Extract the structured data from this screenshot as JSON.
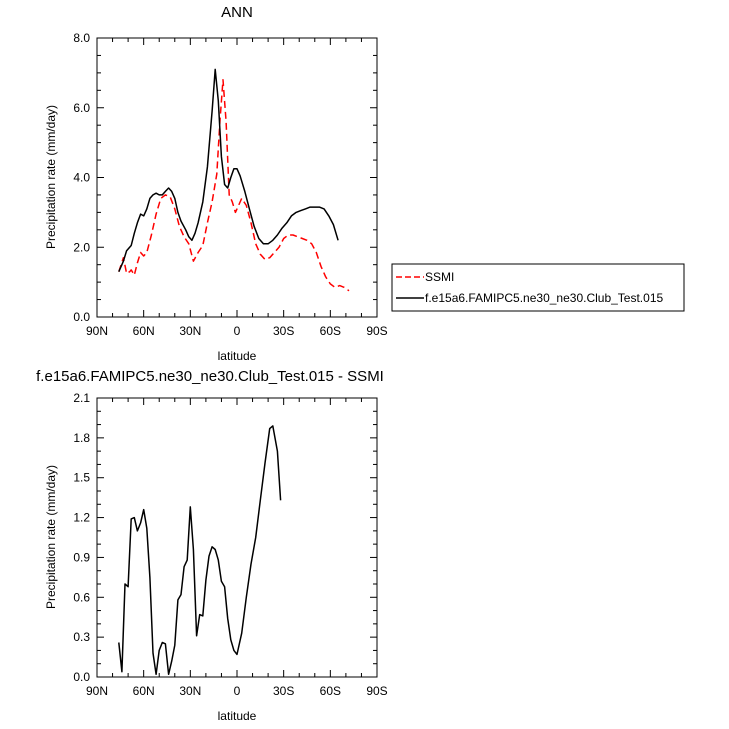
{
  "chart_data": [
    {
      "type": "line",
      "title": "ANN",
      "xlabel": "latitude",
      "ylabel": "Precipitation rate (mm/day)",
      "xlim": [
        90,
        -90
      ],
      "ylim": [
        0,
        8
      ],
      "x_tick_labels": [
        "90N",
        "60N",
        "30N",
        "0",
        "30S",
        "60S",
        "90S"
      ],
      "y_tick_labels": [
        "0.0",
        "2.0",
        "4.0",
        "6.0",
        "8.0"
      ],
      "grid": false,
      "legend_position": "right",
      "series": [
        {
          "name": "SSMI",
          "color": "#ff0000",
          "dash": "dashed",
          "points": [
            [
              76,
              1.3
            ],
            [
              73,
              1.7
            ],
            [
              71,
              1.25
            ],
            [
              69,
              1.3
            ],
            [
              68,
              1.35
            ],
            [
              66,
              1.2
            ],
            [
              64,
              1.55
            ],
            [
              62,
              1.85
            ],
            [
              60,
              1.75
            ],
            [
              58,
              1.85
            ],
            [
              55,
              2.35
            ],
            [
              52,
              2.95
            ],
            [
              49,
              3.4
            ],
            [
              46,
              3.5
            ],
            [
              43,
              3.45
            ],
            [
              40,
              3.1
            ],
            [
              37,
              2.6
            ],
            [
              34,
              2.3
            ],
            [
              31,
              2.1
            ],
            [
              28,
              1.6
            ],
            [
              25,
              1.85
            ],
            [
              22,
              2.05
            ],
            [
              19,
              2.7
            ],
            [
              16,
              3.3
            ],
            [
              13,
              4.1
            ],
            [
              11,
              5.6
            ],
            [
              9,
              6.8
            ],
            [
              7,
              5.6
            ],
            [
              5,
              3.5
            ],
            [
              3,
              3.3
            ],
            [
              1,
              3.0
            ],
            [
              -1,
              3.2
            ],
            [
              -3,
              3.4
            ],
            [
              -6,
              3.2
            ],
            [
              -9,
              2.7
            ],
            [
              -12,
              2.1
            ],
            [
              -15,
              1.8
            ],
            [
              -18,
              1.65
            ],
            [
              -21,
              1.7
            ],
            [
              -24,
              1.85
            ],
            [
              -27,
              2.0
            ],
            [
              -30,
              2.25
            ],
            [
              -33,
              2.35
            ],
            [
              -36,
              2.35
            ],
            [
              -39,
              2.3
            ],
            [
              -42,
              2.25
            ],
            [
              -45,
              2.2
            ],
            [
              -48,
              2.1
            ],
            [
              -51,
              1.85
            ],
            [
              -54,
              1.45
            ],
            [
              -57,
              1.15
            ],
            [
              -60,
              0.95
            ],
            [
              -63,
              0.85
            ],
            [
              -66,
              0.9
            ],
            [
              -69,
              0.85
            ],
            [
              -72,
              0.75
            ]
          ]
        },
        {
          "name": "f.e15a6.FAMIPC5.ne30_ne30.Club_Test.015",
          "color": "#000000",
          "dash": "solid",
          "points": [
            [
              76,
              1.3
            ],
            [
              73,
              1.6
            ],
            [
              71,
              1.9
            ],
            [
              68,
              2.05
            ],
            [
              66,
              2.4
            ],
            [
              64,
              2.7
            ],
            [
              62,
              2.95
            ],
            [
              60,
              2.9
            ],
            [
              58,
              3.1
            ],
            [
              56,
              3.4
            ],
            [
              54,
              3.5
            ],
            [
              52,
              3.55
            ],
            [
              50,
              3.5
            ],
            [
              48,
              3.5
            ],
            [
              46,
              3.6
            ],
            [
              44,
              3.7
            ],
            [
              42,
              3.6
            ],
            [
              40,
              3.4
            ],
            [
              38,
              3.0
            ],
            [
              36,
              2.75
            ],
            [
              33,
              2.5
            ],
            [
              31,
              2.3
            ],
            [
              29,
              2.2
            ],
            [
              27,
              2.4
            ],
            [
              25,
              2.7
            ],
            [
              22,
              3.3
            ],
            [
              19,
              4.3
            ],
            [
              16,
              5.9
            ],
            [
              14,
              7.1
            ],
            [
              12,
              6.2
            ],
            [
              10,
              4.6
            ],
            [
              8,
              3.8
            ],
            [
              6,
              3.7
            ],
            [
              4,
              4.0
            ],
            [
              2,
              4.25
            ],
            [
              0,
              4.25
            ],
            [
              -2,
              4.05
            ],
            [
              -5,
              3.6
            ],
            [
              -8,
              3.1
            ],
            [
              -11,
              2.6
            ],
            [
              -14,
              2.25
            ],
            [
              -17,
              2.1
            ],
            [
              -20,
              2.1
            ],
            [
              -23,
              2.2
            ],
            [
              -26,
              2.35
            ],
            [
              -29,
              2.55
            ],
            [
              -32,
              2.7
            ],
            [
              -35,
              2.9
            ],
            [
              -38,
              3.0
            ],
            [
              -41,
              3.05
            ],
            [
              -44,
              3.1
            ],
            [
              -47,
              3.15
            ],
            [
              -50,
              3.15
            ],
            [
              -53,
              3.15
            ],
            [
              -56,
              3.1
            ],
            [
              -59,
              2.9
            ],
            [
              -62,
              2.65
            ],
            [
              -65,
              2.2
            ]
          ]
        }
      ]
    },
    {
      "type": "line",
      "title": "f.e15a6.FAMIPC5.ne30_ne30.Club_Test.015 - SSMI",
      "xlabel": "latitude",
      "ylabel": "Precipitation rate (mm/day)",
      "xlim": [
        90,
        -90
      ],
      "ylim": [
        0,
        2.1
      ],
      "x_tick_labels": [
        "90N",
        "60N",
        "30N",
        "0",
        "30S",
        "60S",
        "90S"
      ],
      "y_tick_labels": [
        "0.0",
        "0.3",
        "0.6",
        "0.9",
        "1.2",
        "1.5",
        "1.8",
        "2.1"
      ],
      "grid": false,
      "series": [
        {
          "color": "#000000",
          "dash": "solid",
          "points": [
            [
              76,
              0.26
            ],
            [
              74,
              0.04
            ],
            [
              72,
              0.7
            ],
            [
              70,
              0.68
            ],
            [
              68,
              1.19
            ],
            [
              66,
              1.2
            ],
            [
              64,
              1.1
            ],
            [
              62,
              1.16
            ],
            [
              60,
              1.26
            ],
            [
              58,
              1.12
            ],
            [
              56,
              0.75
            ],
            [
              54,
              0.18
            ],
            [
              52,
              0.02
            ],
            [
              50,
              0.2
            ],
            [
              48,
              0.26
            ],
            [
              46,
              0.25
            ],
            [
              44,
              0.02
            ],
            [
              42,
              0.12
            ],
            [
              40,
              0.24
            ],
            [
              38,
              0.58
            ],
            [
              36,
              0.62
            ],
            [
              34,
              0.83
            ],
            [
              32,
              0.88
            ],
            [
              30,
              1.28
            ],
            [
              28,
              0.96
            ],
            [
              26,
              0.31
            ],
            [
              24,
              0.47
            ],
            [
              22,
              0.46
            ],
            [
              20,
              0.73
            ],
            [
              18,
              0.91
            ],
            [
              16,
              0.98
            ],
            [
              14,
              0.96
            ],
            [
              12,
              0.88
            ],
            [
              10,
              0.72
            ],
            [
              8,
              0.68
            ],
            [
              6,
              0.44
            ],
            [
              4,
              0.28
            ],
            [
              2,
              0.2
            ],
            [
              0,
              0.17
            ],
            [
              -3,
              0.33
            ],
            [
              -6,
              0.6
            ],
            [
              -9,
              0.85
            ],
            [
              -12,
              1.05
            ],
            [
              -15,
              1.33
            ],
            [
              -18,
              1.61
            ],
            [
              -21,
              1.87
            ],
            [
              -23,
              1.89
            ],
            [
              -26,
              1.7
            ],
            [
              -28,
              1.33
            ]
          ]
        }
      ]
    }
  ]
}
